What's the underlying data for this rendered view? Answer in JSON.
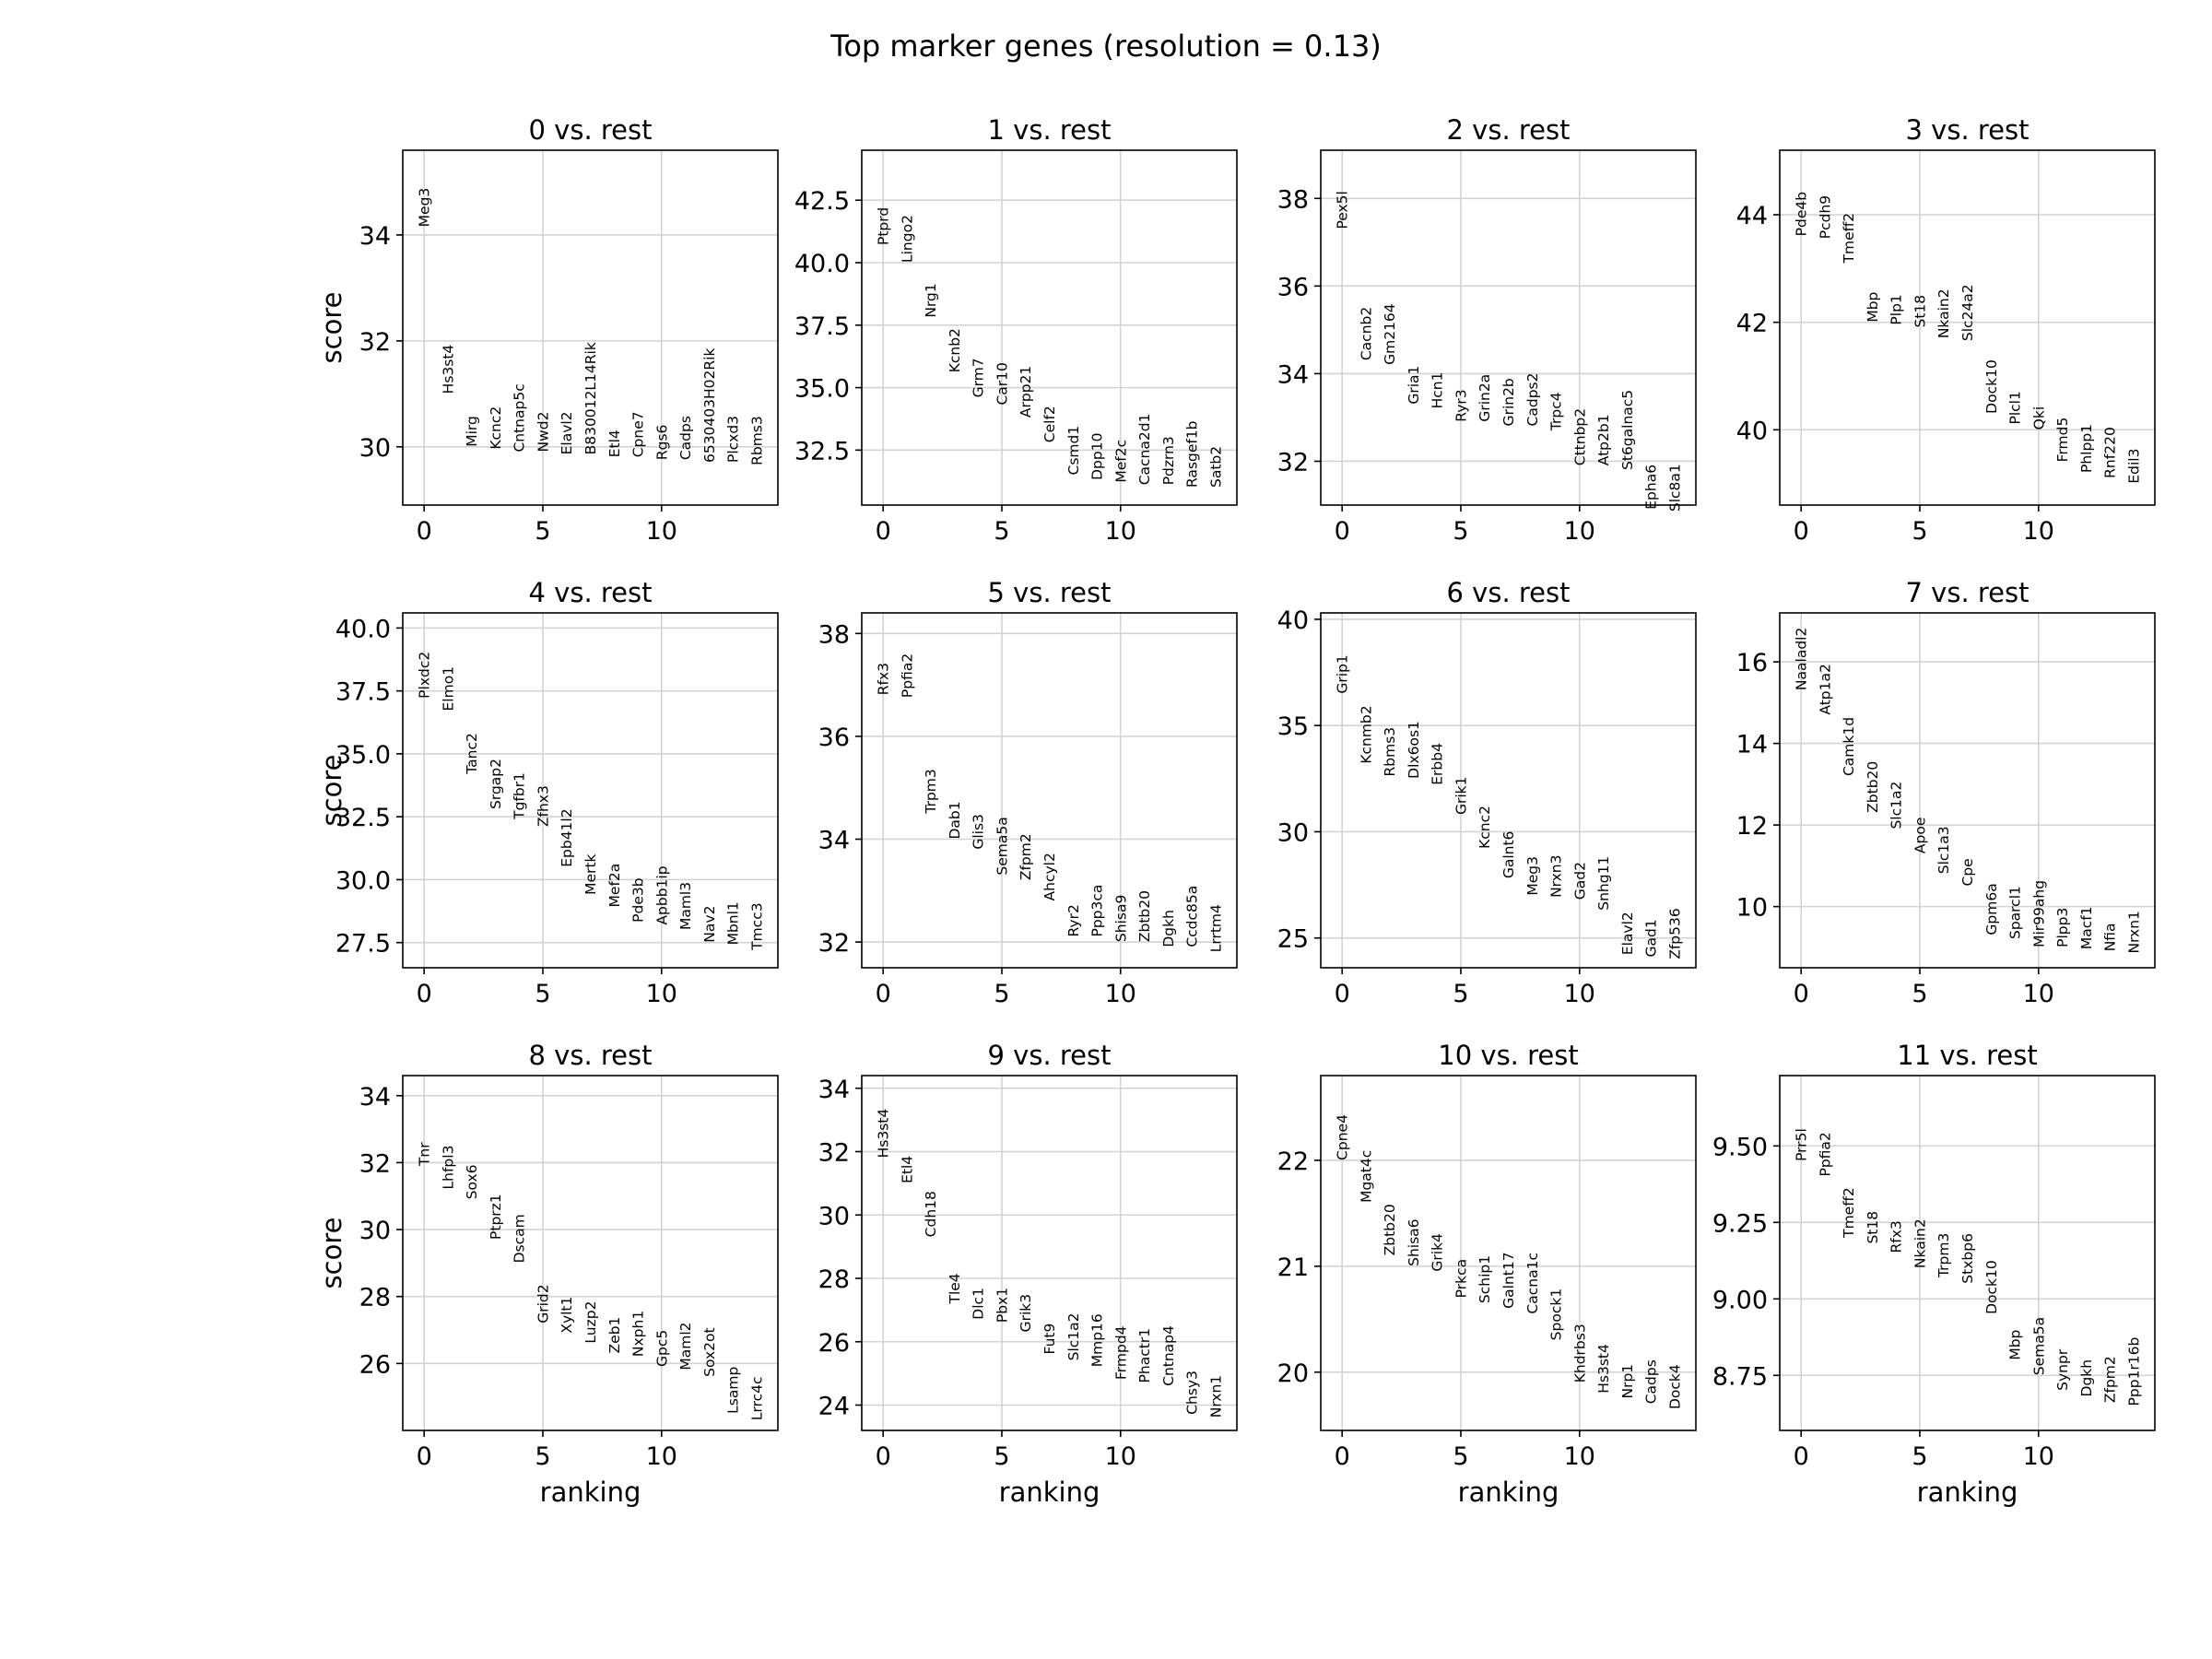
{
  "figure": {
    "suptitle": "Top marker genes (resolution = 0.13)",
    "xlabel": "ranking",
    "ylabel": "score",
    "grid_color": "#d3d3d3"
  },
  "chart_data": [
    {
      "type": "scatter",
      "title": "0 vs. rest",
      "xlim": [
        -0.9,
        14.9
      ],
      "ylim": [
        28.9,
        35.6
      ],
      "xticks": [
        0,
        5,
        10
      ],
      "yticks": [
        30,
        32,
        34
      ],
      "ytick_labels": [
        "30",
        "32",
        "34"
      ],
      "grid": true,
      "genes": [
        "Meg3",
        "Hs3st4",
        "Mirg",
        "Kcnc2",
        "Cntnap5c",
        "Nwd2",
        "Elavl2",
        "B830012L14Rik",
        "Etl4",
        "Cpne7",
        "Rgs6",
        "Cadps",
        "6530403H02Rik",
        "Plcxd3",
        "Rbms3"
      ],
      "scores": [
        34.15,
        31.0,
        30.0,
        29.95,
        29.9,
        29.9,
        29.85,
        29.85,
        29.8,
        29.8,
        29.75,
        29.75,
        29.7,
        29.7,
        29.65
      ]
    },
    {
      "type": "scatter",
      "title": "1 vs. rest",
      "xlim": [
        -0.9,
        14.9
      ],
      "ylim": [
        30.3,
        44.5
      ],
      "xticks": [
        0,
        5,
        10
      ],
      "yticks": [
        32.5,
        35.0,
        37.5,
        40.0,
        42.5
      ],
      "ytick_labels": [
        "32.5",
        "35.0",
        "37.5",
        "40.0",
        "42.5"
      ],
      "grid": true,
      "genes": [
        "Ptprd",
        "Lingo2",
        "Nrg1",
        "Kcnb2",
        "Grm7",
        "Car10",
        "Arpp21",
        "Celf2",
        "Csmd1",
        "Dpp10",
        "Mef2c",
        "Cacna2d1",
        "Pdzrn3",
        "Rasgef1b",
        "Satb2"
      ],
      "scores": [
        40.7,
        40.0,
        37.8,
        35.6,
        34.6,
        34.3,
        33.8,
        32.8,
        31.5,
        31.3,
        31.2,
        31.1,
        31.1,
        31.0,
        31.0
      ]
    },
    {
      "type": "scatter",
      "title": "2 vs. rest",
      "xlim": [
        -0.9,
        14.9
      ],
      "ylim": [
        31.0,
        39.1
      ],
      "xticks": [
        0,
        5,
        10
      ],
      "yticks": [
        32,
        34,
        36,
        38
      ],
      "ytick_labels": [
        "32",
        "34",
        "36",
        "38"
      ],
      "grid": true,
      "genes": [
        "Pex5l",
        "Cacnb2",
        "Gm2164",
        "Gria1",
        "Hcn1",
        "Ryr3",
        "Grin2a",
        "Grin2b",
        "Cadps2",
        "Trpc4",
        "Cttnbp2",
        "Atp2b1",
        "St6galnac5",
        "Epha6",
        "Slc8a1"
      ],
      "scores": [
        37.3,
        34.3,
        34.2,
        33.3,
        33.2,
        32.9,
        32.9,
        32.8,
        32.8,
        32.7,
        31.9,
        31.9,
        31.8,
        30.9,
        30.85
      ]
    },
    {
      "type": "scatter",
      "title": "3 vs. rest",
      "xlim": [
        -0.9,
        14.9
      ],
      "ylim": [
        38.6,
        45.2
      ],
      "xticks": [
        0,
        5,
        10
      ],
      "yticks": [
        40,
        42,
        44
      ],
      "ytick_labels": [
        "40",
        "42",
        "44"
      ],
      "grid": true,
      "genes": [
        "Pde4b",
        "Pcdh9",
        "Tmeff2",
        "Mbp",
        "Plp1",
        "St18",
        "Nkain2",
        "Slc24a2",
        "Dock10",
        "Plcl1",
        "Qki",
        "Frmd5",
        "Phlpp1",
        "Rnf220",
        "Edil3"
      ],
      "scores": [
        43.6,
        43.55,
        43.1,
        42.0,
        41.95,
        41.9,
        41.7,
        41.65,
        40.3,
        40.1,
        40.0,
        39.4,
        39.2,
        39.1,
        39.0
      ]
    },
    {
      "type": "scatter",
      "title": "4 vs. rest",
      "xlim": [
        -0.9,
        14.9
      ],
      "ylim": [
        26.5,
        40.6
      ],
      "xticks": [
        0,
        5,
        10
      ],
      "yticks": [
        27.5,
        30.0,
        32.5,
        35.0,
        37.5,
        40.0
      ],
      "ytick_labels": [
        "27.5",
        "30.0",
        "32.5",
        "35.0",
        "37.5",
        "40.0"
      ],
      "grid": true,
      "genes": [
        "Plxdc2",
        "Elmo1",
        "Tanc2",
        "Srgap2",
        "Tgfbr1",
        "Zfhx3",
        "Epb41l2",
        "Mertk",
        "Mef2a",
        "Pde3b",
        "Apbb1ip",
        "Maml3",
        "Nav2",
        "Mbnl1",
        "Tmcc3"
      ],
      "scores": [
        37.2,
        36.7,
        34.2,
        32.8,
        32.4,
        32.1,
        30.5,
        29.4,
        28.9,
        28.3,
        28.2,
        28.0,
        27.5,
        27.4,
        27.2
      ]
    },
    {
      "type": "scatter",
      "title": "5 vs. rest",
      "xlim": [
        -0.9,
        14.9
      ],
      "ylim": [
        31.5,
        38.4
      ],
      "xticks": [
        0,
        5,
        10
      ],
      "yticks": [
        32,
        34,
        36,
        38
      ],
      "ytick_labels": [
        "32",
        "34",
        "36",
        "38"
      ],
      "grid": true,
      "genes": [
        "Rfx3",
        "Ppfia2",
        "Trpm3",
        "Dab1",
        "Glis3",
        "Sema5a",
        "Zfpm2",
        "Ahcyl2",
        "Ryr2",
        "Ppp3ca",
        "Shisa9",
        "Zbtb20",
        "Dgkh",
        "Ccdc85a",
        "Lrrtm4"
      ],
      "scores": [
        36.8,
        36.75,
        34.5,
        34.0,
        33.8,
        33.3,
        33.2,
        32.8,
        32.1,
        32.1,
        32.0,
        32.0,
        31.9,
        31.9,
        31.8
      ]
    },
    {
      "type": "scatter",
      "title": "6 vs. rest",
      "xlim": [
        -0.9,
        14.9
      ],
      "ylim": [
        23.6,
        40.3
      ],
      "xticks": [
        0,
        5,
        10
      ],
      "yticks": [
        25,
        30,
        35,
        40
      ],
      "ytick_labels": [
        "25",
        "30",
        "35",
        "40"
      ],
      "grid": true,
      "genes": [
        "Grip1",
        "Kcnmb2",
        "Rbms3",
        "Dlx6os1",
        "Erbb4",
        "Grik1",
        "Kcnc2",
        "Galnt6",
        "Meg3",
        "Nrxn3",
        "Gad2",
        "Snhg11",
        "Elavl2",
        "Gad1",
        "Zfp536"
      ],
      "scores": [
        36.5,
        33.2,
        32.6,
        32.5,
        32.2,
        30.8,
        29.2,
        27.8,
        27.0,
        26.9,
        26.8,
        26.3,
        24.2,
        24.1,
        24.0
      ]
    },
    {
      "type": "scatter",
      "title": "7 vs. rest",
      "xlim": [
        -0.9,
        14.9
      ],
      "ylim": [
        8.5,
        17.2
      ],
      "xticks": [
        0,
        5,
        10
      ],
      "yticks": [
        10,
        12,
        14,
        16
      ],
      "ytick_labels": [
        "10",
        "12",
        "14",
        "16"
      ],
      "grid": true,
      "genes": [
        "Naaladl2",
        "Atp1a2",
        "Camk1d",
        "Zbtb20",
        "Slc1a2",
        "Apoe",
        "Slc1a3",
        "Cpe",
        "Gpm6a",
        "Sparcl1",
        "Mir99ahg",
        "Plpp3",
        "Macf1",
        "Nfia",
        "Nrxn1"
      ],
      "scores": [
        15.3,
        14.7,
        13.2,
        12.3,
        11.9,
        11.3,
        10.8,
        10.5,
        9.3,
        9.2,
        9.0,
        9.0,
        8.95,
        8.9,
        8.85
      ]
    },
    {
      "type": "scatter",
      "title": "8 vs. rest",
      "xlim": [
        -0.9,
        14.9
      ],
      "ylim": [
        24.0,
        34.6
      ],
      "xticks": [
        0,
        5,
        10
      ],
      "yticks": [
        26,
        28,
        30,
        32,
        34
      ],
      "ytick_labels": [
        "26",
        "28",
        "30",
        "32",
        "34"
      ],
      "grid": true,
      "genes": [
        "Tnr",
        "Lhfpl3",
        "Sox6",
        "Ptprz1",
        "Dscam",
        "Grid2",
        "Xylt1",
        "Luzp2",
        "Zeb1",
        "Nxph1",
        "Gpc5",
        "Maml2",
        "Sox2ot",
        "Lsamp",
        "Lrrc4c"
      ],
      "scores": [
        31.9,
        31.2,
        30.9,
        29.7,
        29.0,
        27.2,
        26.9,
        26.6,
        26.3,
        26.2,
        25.9,
        25.8,
        25.6,
        24.5,
        24.3
      ]
    },
    {
      "type": "scatter",
      "title": "9 vs. rest",
      "xlim": [
        -0.9,
        14.9
      ],
      "ylim": [
        23.2,
        34.4
      ],
      "xticks": [
        0,
        5,
        10
      ],
      "yticks": [
        24,
        26,
        28,
        30,
        32,
        34
      ],
      "ytick_labels": [
        "24",
        "26",
        "28",
        "30",
        "32",
        "34"
      ],
      "grid": true,
      "genes": [
        "Hs3st4",
        "Etl4",
        "Cdh18",
        "Tle4",
        "Dlc1",
        "Pbx1",
        "Grik3",
        "Fut9",
        "Slc1a2",
        "Mmp16",
        "Frmpd4",
        "Phactr1",
        "Cntnap4",
        "Chsy3",
        "Nrxn1"
      ],
      "scores": [
        31.8,
        31.0,
        29.3,
        27.2,
        26.7,
        26.6,
        26.3,
        25.6,
        25.4,
        25.2,
        24.8,
        24.7,
        24.6,
        23.7,
        23.6
      ]
    },
    {
      "type": "scatter",
      "title": "10 vs. rest",
      "xlim": [
        -0.9,
        14.9
      ],
      "ylim": [
        19.45,
        22.8
      ],
      "xticks": [
        0,
        5,
        10
      ],
      "yticks": [
        20,
        21,
        22
      ],
      "ytick_labels": [
        "20",
        "21",
        "22"
      ],
      "grid": true,
      "genes": [
        "Cpne4",
        "Mgat4c",
        "Zbtb20",
        "Shisa6",
        "Grik4",
        "Prkca",
        "Schip1",
        "Galnt17",
        "Cacna1c",
        "Spock1",
        "Khdrbs3",
        "Hs3st4",
        "Nrp1",
        "Cadps",
        "Dock4"
      ],
      "scores": [
        22.0,
        21.6,
        21.1,
        21.0,
        20.95,
        20.7,
        20.65,
        20.6,
        20.55,
        20.3,
        19.9,
        19.8,
        19.75,
        19.7,
        19.65
      ]
    },
    {
      "type": "scatter",
      "title": "11 vs. rest",
      "xlim": [
        -0.9,
        14.9
      ],
      "ylim": [
        8.57,
        9.73
      ],
      "xticks": [
        0,
        5,
        10
      ],
      "yticks": [
        8.75,
        9.0,
        9.25,
        9.5
      ],
      "ytick_labels": [
        "8.75",
        "9.00",
        "9.25",
        "9.50"
      ],
      "grid": true,
      "genes": [
        "Prr5l",
        "Ppfia2",
        "Tmeff2",
        "St18",
        "Rfx3",
        "Nkain2",
        "Trpm3",
        "Stxbp6",
        "Dock10",
        "Mbp",
        "Sema5a",
        "Synpr",
        "Dgkh",
        "Zfpm2",
        "Ppp1r16b"
      ],
      "scores": [
        9.45,
        9.4,
        9.2,
        9.18,
        9.15,
        9.1,
        9.07,
        9.05,
        8.95,
        8.8,
        8.75,
        8.7,
        8.68,
        8.66,
        8.65
      ]
    }
  ]
}
